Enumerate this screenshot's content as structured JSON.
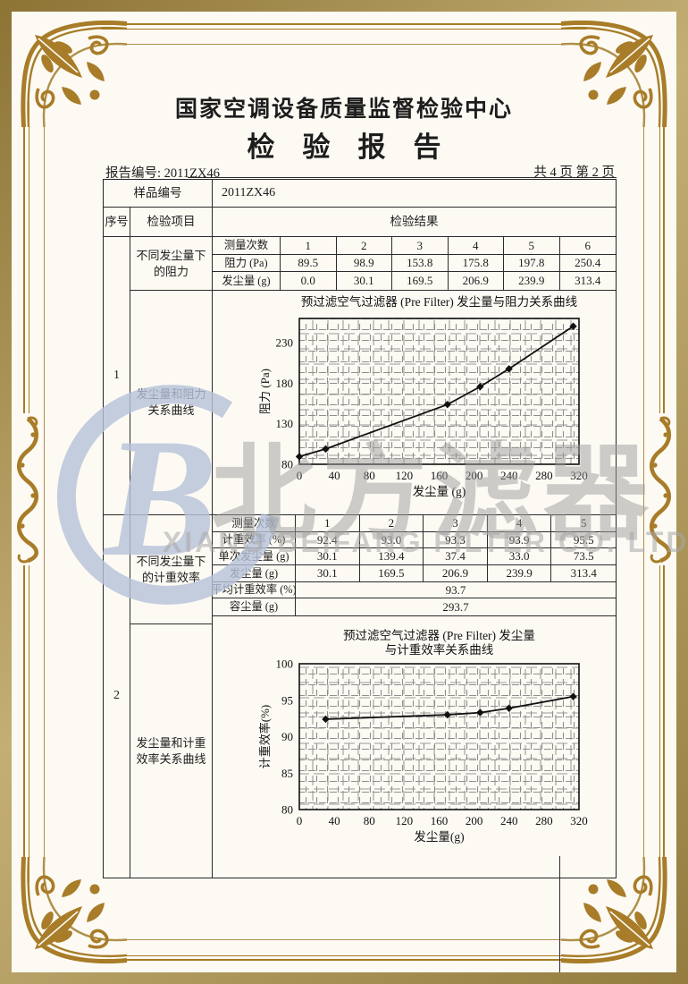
{
  "doc": {
    "center_name": "国家空调设备质量监督检验中心",
    "report_title": "检　验　报　告",
    "report_no": "报告编号: 2011ZX46",
    "page_info": "共 4 页 第 2 页"
  },
  "table": {
    "sample_label": "样品编号",
    "sample_value": "2011ZX46",
    "headers": {
      "serial": "序号",
      "item": "检验项目",
      "result": "检验结果"
    },
    "row1": {
      "serial": "1",
      "item_table": "不同发尘量下的阻力",
      "item_chart": "发尘量和阻力关系曲线"
    },
    "row2": {
      "serial": "2",
      "item_table": "不同发尘量下的计重效率",
      "item_chart": "发尘量和计重效率关系曲线"
    },
    "t1": {
      "corner": "测量次数",
      "cols": [
        "1",
        "2",
        "3",
        "4",
        "5",
        "6"
      ],
      "r1_label": "阻力 (Pa)",
      "r1": [
        "89.5",
        "98.9",
        "153.8",
        "175.8",
        "197.8",
        "250.4"
      ],
      "r2_label": "发尘量 (g)",
      "r2": [
        "0.0",
        "30.1",
        "169.5",
        "206.9",
        "239.9",
        "313.4"
      ]
    },
    "t2": {
      "corner": "测量次数",
      "cols": [
        "1",
        "2",
        "3",
        "4",
        "5"
      ],
      "r1_label": "计重效率 (%)",
      "r1": [
        "92.4",
        "93.0",
        "93.3",
        "93.9",
        "95.5"
      ],
      "r2_label": "单次发尘量 (g)",
      "r2": [
        "30.1",
        "139.4",
        "37.4",
        "33.0",
        "73.5"
      ],
      "r3_label": "发尘量 (g)",
      "r3": [
        "30.1",
        "169.5",
        "206.9",
        "239.9",
        "313.4"
      ],
      "avg_label": "平均计重效率 (%)",
      "avg": "93.7",
      "cap_label": "容尘量 (g)",
      "cap": "293.7"
    }
  },
  "watermark": {
    "logo_letter": "B",
    "cn": "北方滤器",
    "en": "XIANG BEIFANG FILTER CO. LTD."
  },
  "chart_data": [
    {
      "type": "line",
      "title": "预过滤空气过滤器 (Pre Filter) 发尘量与阻力关系曲线",
      "xlabel": "发尘量 (g)",
      "ylabel": "阻力 (Pa)",
      "x": [
        0,
        30.1,
        169.5,
        206.9,
        239.9,
        313.4
      ],
      "y": [
        89.5,
        98.9,
        153.8,
        175.8,
        197.8,
        250.4
      ],
      "xlim": [
        0,
        320
      ],
      "xticks": [
        0,
        40,
        80,
        120,
        160,
        200,
        240,
        280,
        320
      ],
      "ylim": [
        80,
        260
      ],
      "yticks": [
        80,
        130,
        180,
        230
      ],
      "grid": true,
      "legend": "none",
      "marker": "diamond"
    },
    {
      "type": "line",
      "title": "预过滤空气过滤器 (Pre Filter) 发尘量",
      "title2": "与计重效率关系曲线",
      "xlabel": "发尘量(g)",
      "ylabel": "计重效率(%)",
      "x": [
        30.1,
        169.5,
        206.9,
        239.9,
        313.4
      ],
      "y": [
        92.4,
        93.0,
        93.3,
        93.9,
        95.5
      ],
      "xlim": [
        0,
        320
      ],
      "xticks": [
        0,
        40,
        80,
        120,
        160,
        200,
        240,
        280,
        320
      ],
      "ylim": [
        80,
        100
      ],
      "yticks": [
        80,
        85,
        90,
        95,
        100
      ],
      "grid": true,
      "legend": "none",
      "marker": "diamond"
    }
  ]
}
